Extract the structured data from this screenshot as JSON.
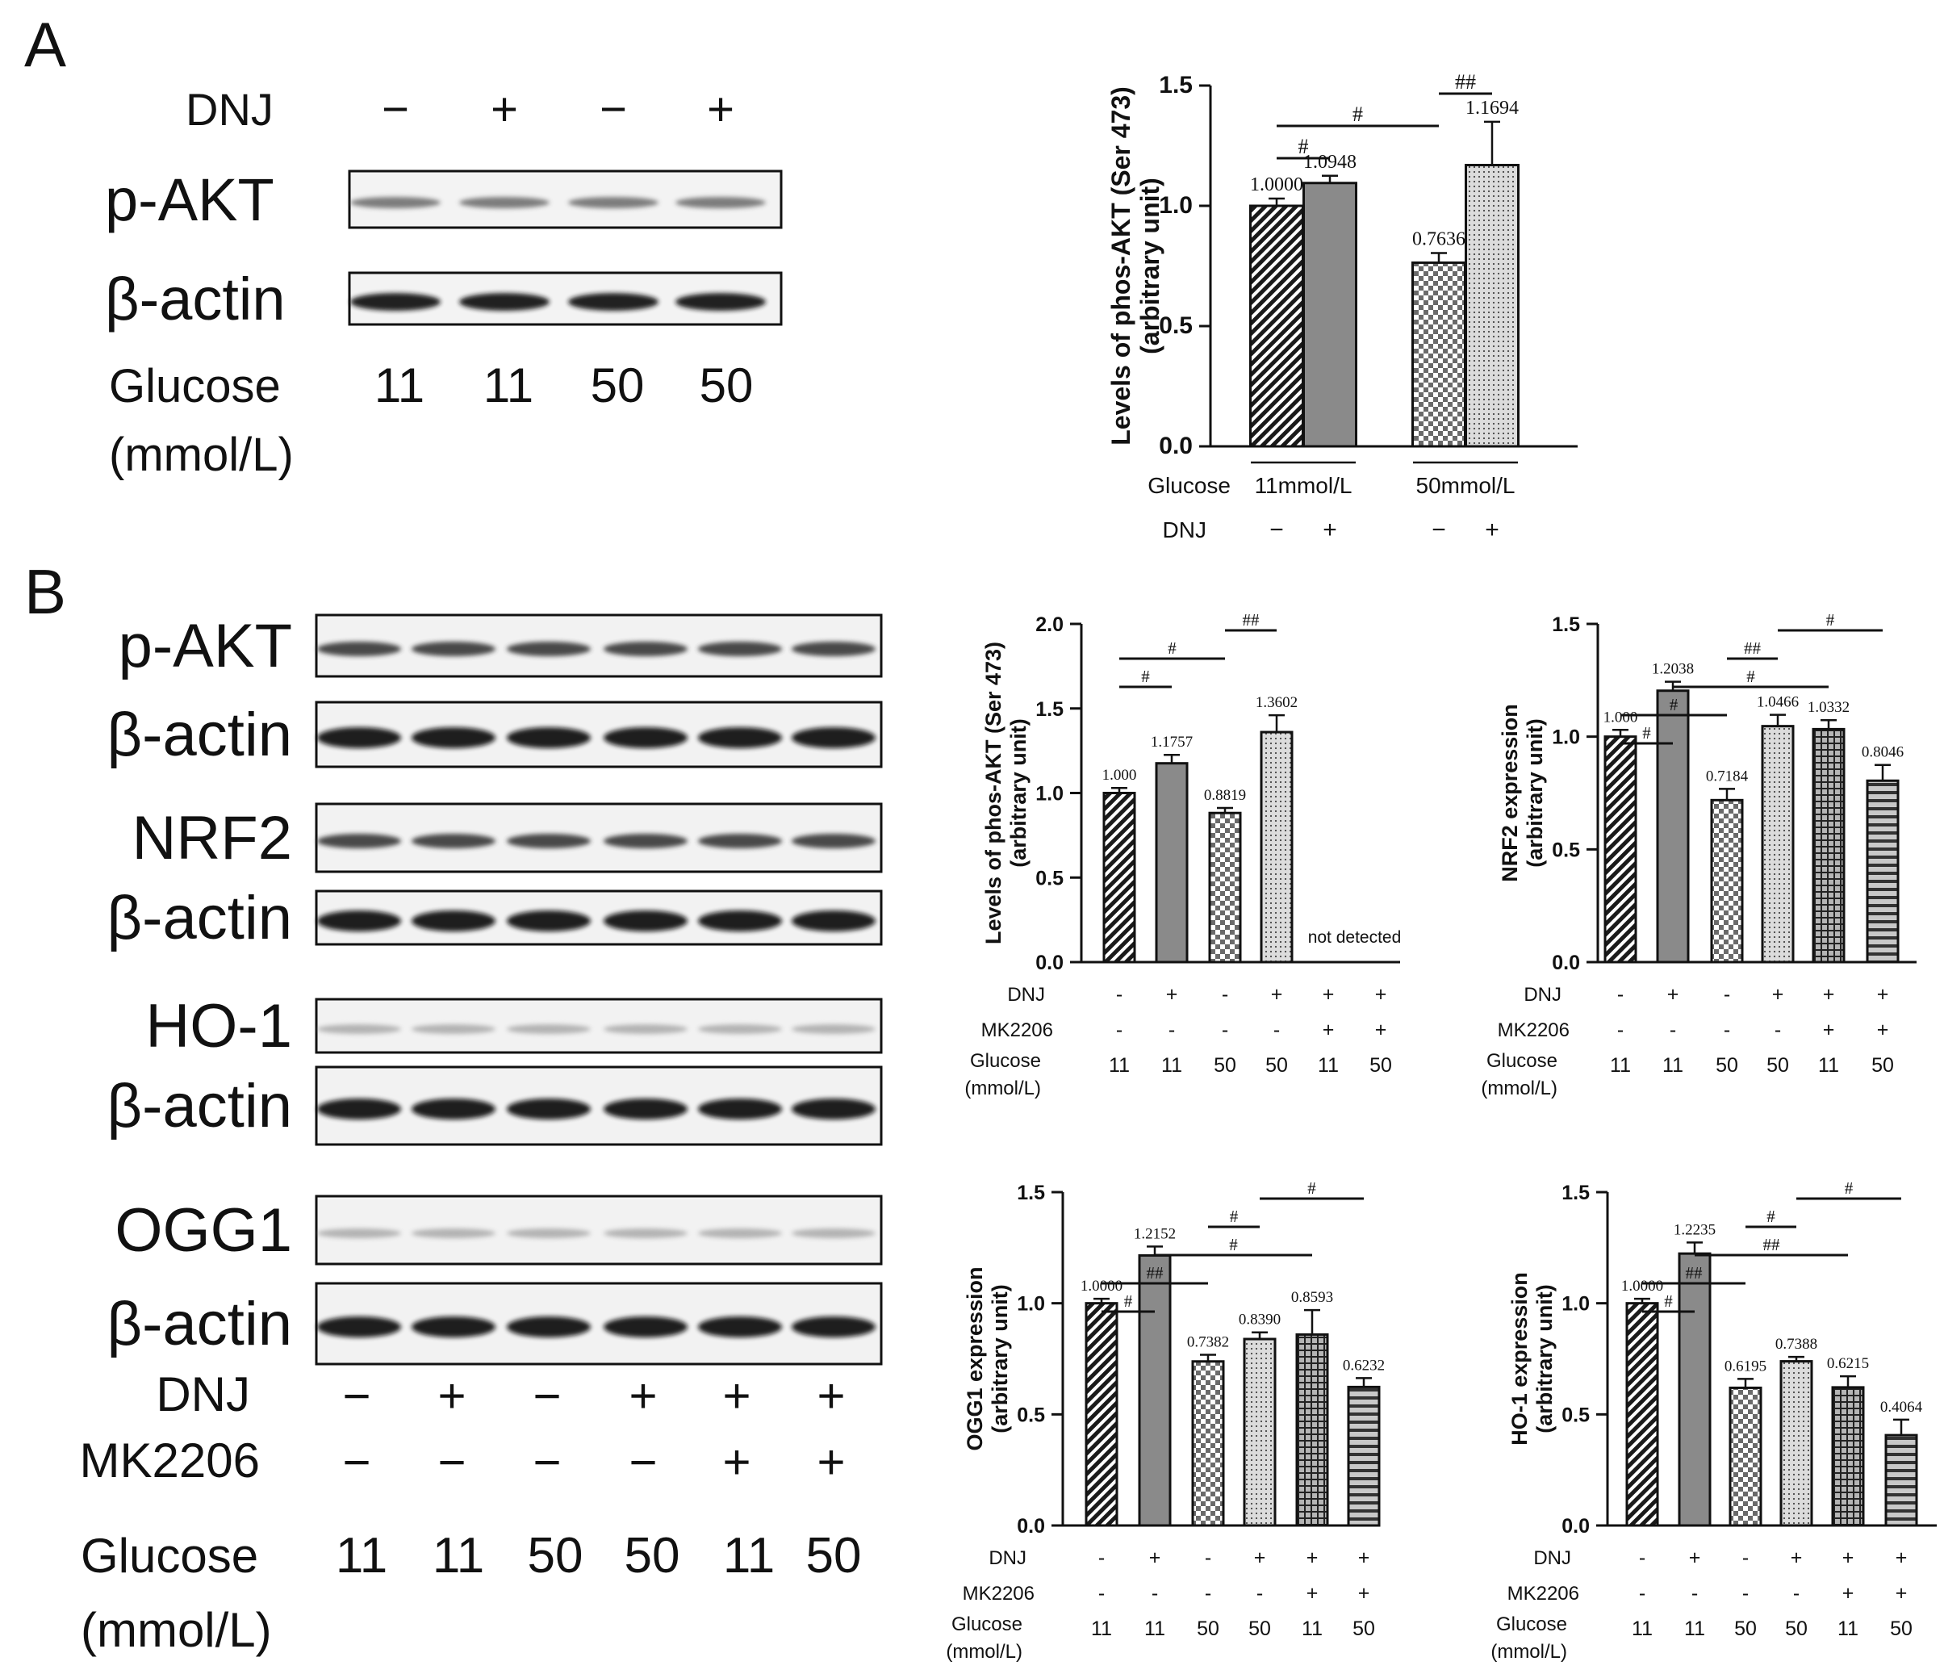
{
  "panel_labels": {
    "a": "A",
    "b": "B"
  },
  "blot_a": {
    "dnj_label": "DNJ",
    "dnj": [
      "−",
      "+",
      "−",
      "+"
    ],
    "rows": [
      "p-AKT",
      "β-actin"
    ],
    "glucose_label": "Glucose",
    "glucose_unit": "(mmol/L)",
    "glucose": [
      "11",
      "11",
      "50",
      "50"
    ]
  },
  "blot_b": {
    "rows": [
      "p-AKT",
      "β-actin",
      "NRF2",
      "β-actin",
      "HO-1",
      "β-actin",
      "OGG1",
      "β-actin"
    ],
    "dnj_label": "DNJ",
    "dnj": [
      "−",
      "+",
      "−",
      "+",
      "+",
      "+"
    ],
    "mk_label": "MK2206",
    "mk": [
      "−",
      "−",
      "−",
      "−",
      "+",
      "+"
    ],
    "glucose_label": "Glucose",
    "glucose_unit": "(mmol/L)",
    "glucose": [
      "11",
      "11",
      "50",
      "50",
      "11",
      "50"
    ]
  },
  "chart_data": [
    {
      "id": "A",
      "type": "bar",
      "ylabel": [
        "Levels of phos-AKT (Ser 473)",
        "(arbitrary unit)"
      ],
      "ylim": [
        0,
        1.5
      ],
      "yticks": [
        "0.0",
        "0.5",
        "1.0",
        "1.5"
      ],
      "values": [
        1.0,
        1.0948,
        0.7636,
        1.1694
      ],
      "errors": [
        0.03,
        0.03,
        0.04,
        0.18
      ],
      "data_labels": [
        "1.0000",
        "1.0948",
        "0.7636",
        "1.1694"
      ],
      "patterns": [
        "diag",
        "solid",
        "checker",
        "dots"
      ],
      "glucose_label": "Glucose",
      "glucose_groups": [
        "11mmol/L",
        "50mmol/L"
      ],
      "dnj_label": "DNJ",
      "dnj": [
        "−",
        "+",
        "−",
        "+"
      ],
      "significance": [
        {
          "from": 0,
          "to": 1,
          "label": "#"
        },
        {
          "from": 0,
          "to": 2,
          "label": "#"
        },
        {
          "from": 2,
          "to": 3,
          "label": "##"
        }
      ]
    },
    {
      "id": "B1",
      "type": "bar",
      "ylabel": [
        "Levels of phos-AKT (Ser 473)",
        "(arbitrary unit)"
      ],
      "ylim": [
        0,
        2.0
      ],
      "yticks": [
        "0.0",
        "0.5",
        "1.0",
        "1.5",
        "2.0"
      ],
      "values": [
        1.0,
        1.1757,
        0.8819,
        1.3602,
        0,
        0
      ],
      "errors": [
        0.03,
        0.05,
        0.03,
        0.1,
        0,
        0
      ],
      "data_labels": [
        "1.000",
        "1.1757",
        "0.8819",
        "1.3602",
        "",
        ""
      ],
      "patterns": [
        "diag",
        "solid",
        "checker",
        "dots",
        "none",
        "none"
      ],
      "annotation": "not detected",
      "dnj_label": "DNJ",
      "dnj": [
        "-",
        "+",
        "-",
        "+",
        "+",
        "+"
      ],
      "mk_label": "MK2206",
      "mk": [
        "-",
        "-",
        "-",
        "-",
        "+",
        "+"
      ],
      "glucose_label": [
        "Glucose",
        "(mmol/L)"
      ],
      "glucose": [
        "11",
        "11",
        "50",
        "50",
        "11",
        "50"
      ],
      "significance": [
        {
          "from": 0,
          "to": 1,
          "label": "#"
        },
        {
          "from": 0,
          "to": 2,
          "label": "#"
        },
        {
          "from": 2,
          "to": 3,
          "label": "##"
        }
      ]
    },
    {
      "id": "B2",
      "type": "bar",
      "ylabel": [
        "NRF2 expression",
        "(arbitrary unit)"
      ],
      "ylim": [
        0,
        1.5
      ],
      "yticks": [
        "0.0",
        "0.5",
        "1.0",
        "1.5"
      ],
      "values": [
        1.0,
        1.2038,
        0.7184,
        1.0466,
        1.0332,
        0.8046
      ],
      "errors": [
        0.03,
        0.04,
        0.05,
        0.05,
        0.04,
        0.07
      ],
      "data_labels": [
        "1.000",
        "1.2038",
        "0.7184",
        "1.0466",
        "1.0332",
        "0.8046"
      ],
      "patterns": [
        "diag",
        "solid",
        "checker",
        "dots",
        "grid",
        "hlines"
      ],
      "dnj_label": "DNJ",
      "dnj": [
        "-",
        "+",
        "-",
        "+",
        "+",
        "+"
      ],
      "mk_label": "MK2206",
      "mk": [
        "-",
        "-",
        "-",
        "-",
        "+",
        "+"
      ],
      "glucose_label": [
        "Glucose",
        "(mmol/L)"
      ],
      "glucose": [
        "11",
        "11",
        "50",
        "50",
        "11",
        "50"
      ],
      "significance": [
        {
          "from": 0,
          "to": 1,
          "label": "#"
        },
        {
          "from": 0,
          "to": 2,
          "label": "#"
        },
        {
          "from": 1,
          "to": 4,
          "label": "#"
        },
        {
          "from": 2,
          "to": 3,
          "label": "##"
        },
        {
          "from": 3,
          "to": 5,
          "label": "#"
        }
      ]
    },
    {
      "id": "B3",
      "type": "bar",
      "ylabel": [
        "OGG1 expression",
        "(arbitrary unit)"
      ],
      "ylim": [
        0,
        1.5
      ],
      "yticks": [
        "0.0",
        "0.5",
        "1.0",
        "1.5"
      ],
      "values": [
        1.0,
        1.2152,
        0.7382,
        0.839,
        0.8593,
        0.6232
      ],
      "errors": [
        0.02,
        0.04,
        0.03,
        0.03,
        0.11,
        0.04
      ],
      "data_labels": [
        "1.0000",
        "1.2152",
        "0.7382",
        "0.8390",
        "0.8593",
        "0.6232"
      ],
      "patterns": [
        "diag",
        "solid",
        "checker",
        "dots",
        "grid",
        "hlines"
      ],
      "dnj_label": "DNJ",
      "dnj": [
        "-",
        "+",
        "-",
        "+",
        "+",
        "+"
      ],
      "mk_label": "MK2206",
      "mk": [
        "-",
        "-",
        "-",
        "-",
        "+",
        "+"
      ],
      "glucose_label": [
        "Glucose",
        "(mmol/L)"
      ],
      "glucose": [
        "11",
        "11",
        "50",
        "50",
        "11",
        "50"
      ],
      "significance": [
        {
          "from": 0,
          "to": 1,
          "label": "#"
        },
        {
          "from": 0,
          "to": 2,
          "label": "##"
        },
        {
          "from": 1,
          "to": 4,
          "label": "#"
        },
        {
          "from": 2,
          "to": 3,
          "label": "#"
        },
        {
          "from": 3,
          "to": 5,
          "label": "#"
        }
      ]
    },
    {
      "id": "B4",
      "type": "bar",
      "ylabel": [
        "HO-1 expression",
        "(arbitrary unit)"
      ],
      "ylim": [
        0,
        1.5
      ],
      "yticks": [
        "0.0",
        "0.5",
        "1.0",
        "1.5"
      ],
      "values": [
        1.0,
        1.2235,
        0.6195,
        0.7388,
        0.6215,
        0.4064
      ],
      "errors": [
        0.02,
        0.05,
        0.04,
        0.02,
        0.05,
        0.07
      ],
      "data_labels": [
        "1.0000",
        "1.2235",
        "0.6195",
        "0.7388",
        "0.6215",
        "0.4064"
      ],
      "patterns": [
        "diag",
        "solid",
        "checker",
        "dots",
        "grid",
        "hlines"
      ],
      "dnj_label": "DNJ",
      "dnj": [
        "-",
        "+",
        "-",
        "+",
        "+",
        "+"
      ],
      "mk_label": "MK2206",
      "mk": [
        "-",
        "-",
        "-",
        "-",
        "+",
        "+"
      ],
      "glucose_label": [
        "Glucose",
        "(mmol/L)"
      ],
      "glucose": [
        "11",
        "11",
        "50",
        "50",
        "11",
        "50"
      ],
      "significance": [
        {
          "from": 0,
          "to": 1,
          "label": "#"
        },
        {
          "from": 0,
          "to": 2,
          "label": "##"
        },
        {
          "from": 1,
          "to": 4,
          "label": "##"
        },
        {
          "from": 2,
          "to": 3,
          "label": "#"
        },
        {
          "from": 3,
          "to": 5,
          "label": "#"
        }
      ]
    }
  ]
}
